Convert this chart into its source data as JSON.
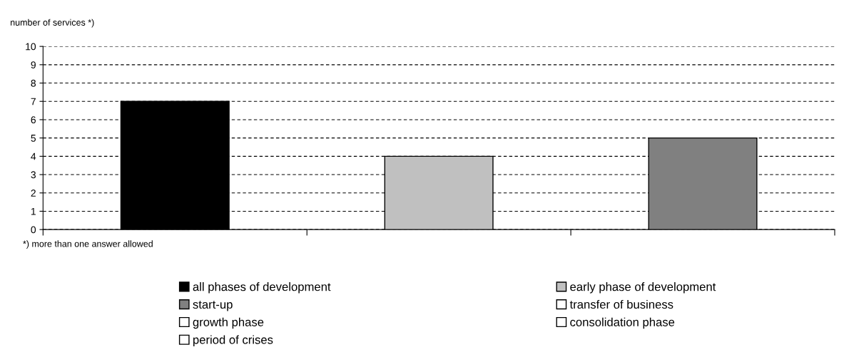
{
  "chart_data": {
    "type": "bar",
    "ylabel": "number of services *)",
    "categories": [
      null,
      null,
      null
    ],
    "series": [
      {
        "name": "all phases of development",
        "color": "#000000",
        "values": [
          7,
          null,
          null
        ]
      },
      {
        "name": "early phase of development",
        "color": "#c0c0c0",
        "values": [
          null,
          4,
          null
        ]
      },
      {
        "name": "start-up",
        "color": "#808080",
        "values": [
          null,
          null,
          5
        ]
      },
      {
        "name": "transfer of business",
        "color": "#ffffff",
        "values": [
          null,
          null,
          null
        ]
      },
      {
        "name": "growth phase",
        "color": "#ffffff",
        "values": [
          null,
          null,
          null
        ]
      },
      {
        "name": "consolidation phase",
        "color": "#ffffff",
        "values": [
          null,
          null,
          null
        ]
      },
      {
        "name": "period of crises",
        "color": "#ffffff",
        "values": [
          null,
          null,
          null
        ]
      }
    ],
    "ylim": [
      0,
      10
    ],
    "yticks": [
      0,
      1,
      2,
      3,
      4,
      5,
      6,
      7,
      8,
      9,
      10
    ],
    "grid": "y",
    "legend": "bottom",
    "annotations": [
      "*) more than one answer allowed"
    ]
  }
}
